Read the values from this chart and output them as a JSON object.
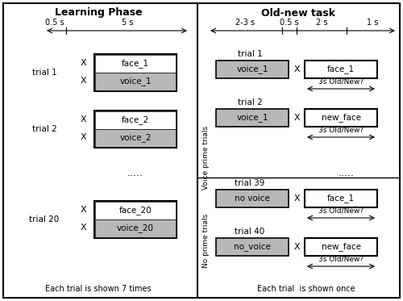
{
  "title_left": "Learning Phase",
  "title_right": "Old-new task",
  "footer_left": "Each trial is shown 7 times",
  "footer_right": "Each trial  is shown once",
  "voice_prime_label": "Voice prime trials",
  "no_prime_label": "No prime trials",
  "dots": ".....",
  "response_label": "3s Old/New?",
  "bg_color": "#ffffff",
  "box_gray": "#b8b8b8",
  "box_white": "#ffffff",
  "border_color": "#000000",
  "left_timing_labels": [
    "0.5 s",
    "5 s"
  ],
  "right_timing_labels": [
    "2-3 s",
    "0.5 s",
    "2 s",
    "1 s"
  ],
  "left_trials": [
    {
      "label": "trial 1",
      "face": "face_1",
      "voice": "voice_1"
    },
    {
      "label": "trial 2",
      "face": "face_2",
      "voice": "voice_2"
    },
    {
      "label": "trial 20",
      "face": "face_20",
      "voice": "voice_20"
    }
  ],
  "right_voice_trials": [
    {
      "label": "trial 1",
      "prime": "voice_1",
      "target": "face_1"
    },
    {
      "label": "trial 2",
      "prime": "voice_1",
      "target": "new_face"
    }
  ],
  "right_no_trials": [
    {
      "label": "trial 39",
      "prime": "no voice",
      "target": "face_1"
    },
    {
      "label": "trial 40",
      "prime": "no_voice",
      "target": "new_face"
    }
  ]
}
